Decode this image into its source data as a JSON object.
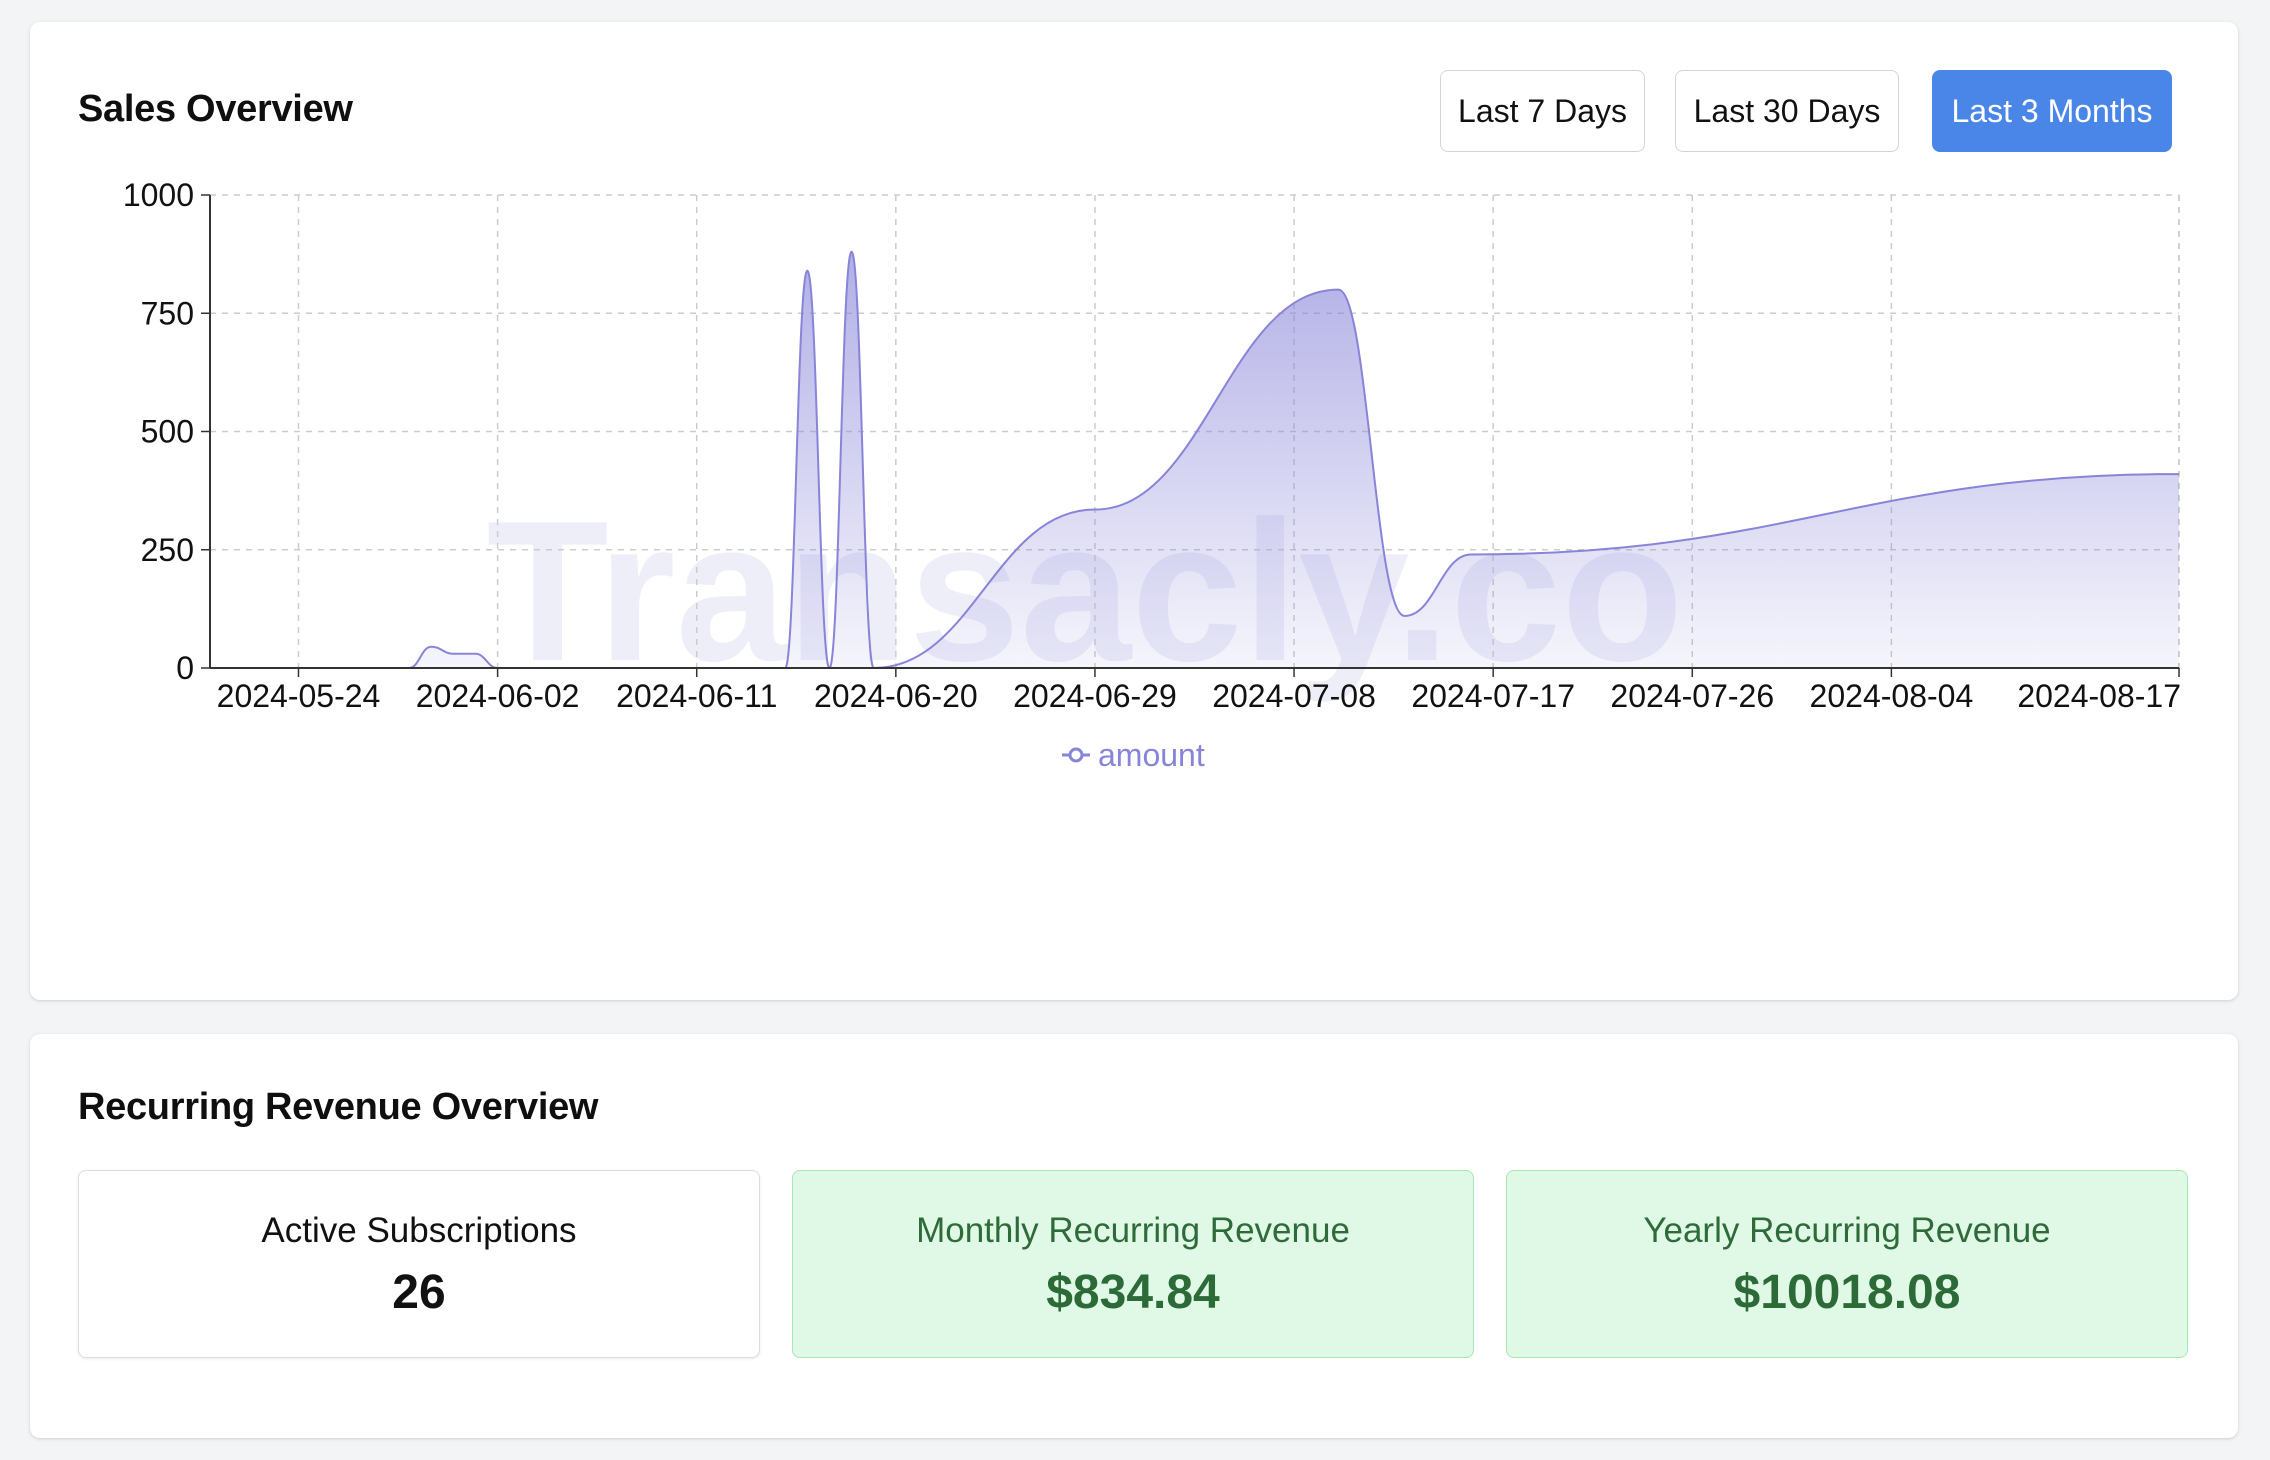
{
  "sales_overview": {
    "title": "Sales Overview",
    "range_buttons": [
      "Last 7 Days",
      "Last 30 Days",
      "Last 3 Months"
    ],
    "active_range": "Last 3 Months",
    "watermark": "Transacly.co"
  },
  "chart_data": {
    "type": "area",
    "title": "Sales Overview",
    "xlabel": "",
    "ylabel": "",
    "x_tick_labels": [
      "2024-05-24",
      "2024-06-02",
      "2024-06-11",
      "2024-06-20",
      "2024-06-29",
      "2024-07-08",
      "2024-07-17",
      "2024-07-26",
      "2024-08-04",
      "2024-08-17"
    ],
    "y_ticks": [
      0,
      250,
      500,
      750,
      1000
    ],
    "ylim": [
      0,
      1000
    ],
    "grid": true,
    "legend": "bottom-center",
    "series": [
      {
        "name": "amount",
        "color": "#8884d8",
        "x": [
          "2024-05-20",
          "2024-05-29",
          "2024-05-30",
          "2024-05-31",
          "2024-06-01",
          "2024-06-02",
          "2024-06-15",
          "2024-06-16",
          "2024-06-17",
          "2024-06-18",
          "2024-06-19",
          "2024-06-29",
          "2024-07-10",
          "2024-07-13",
          "2024-07-16",
          "2024-08-17"
        ],
        "values": [
          0,
          0,
          45,
          30,
          30,
          0,
          0,
          840,
          0,
          880,
          0,
          335,
          800,
          110,
          240,
          410
        ]
      }
    ]
  },
  "recurring_revenue": {
    "title": "Recurring Revenue Overview",
    "active_subscriptions": {
      "label": "Active Subscriptions",
      "value": "26"
    },
    "monthly": {
      "label": "Monthly Recurring Revenue",
      "value": "$834.84"
    },
    "yearly": {
      "label": "Yearly Recurring Revenue",
      "value": "$10018.08"
    }
  }
}
